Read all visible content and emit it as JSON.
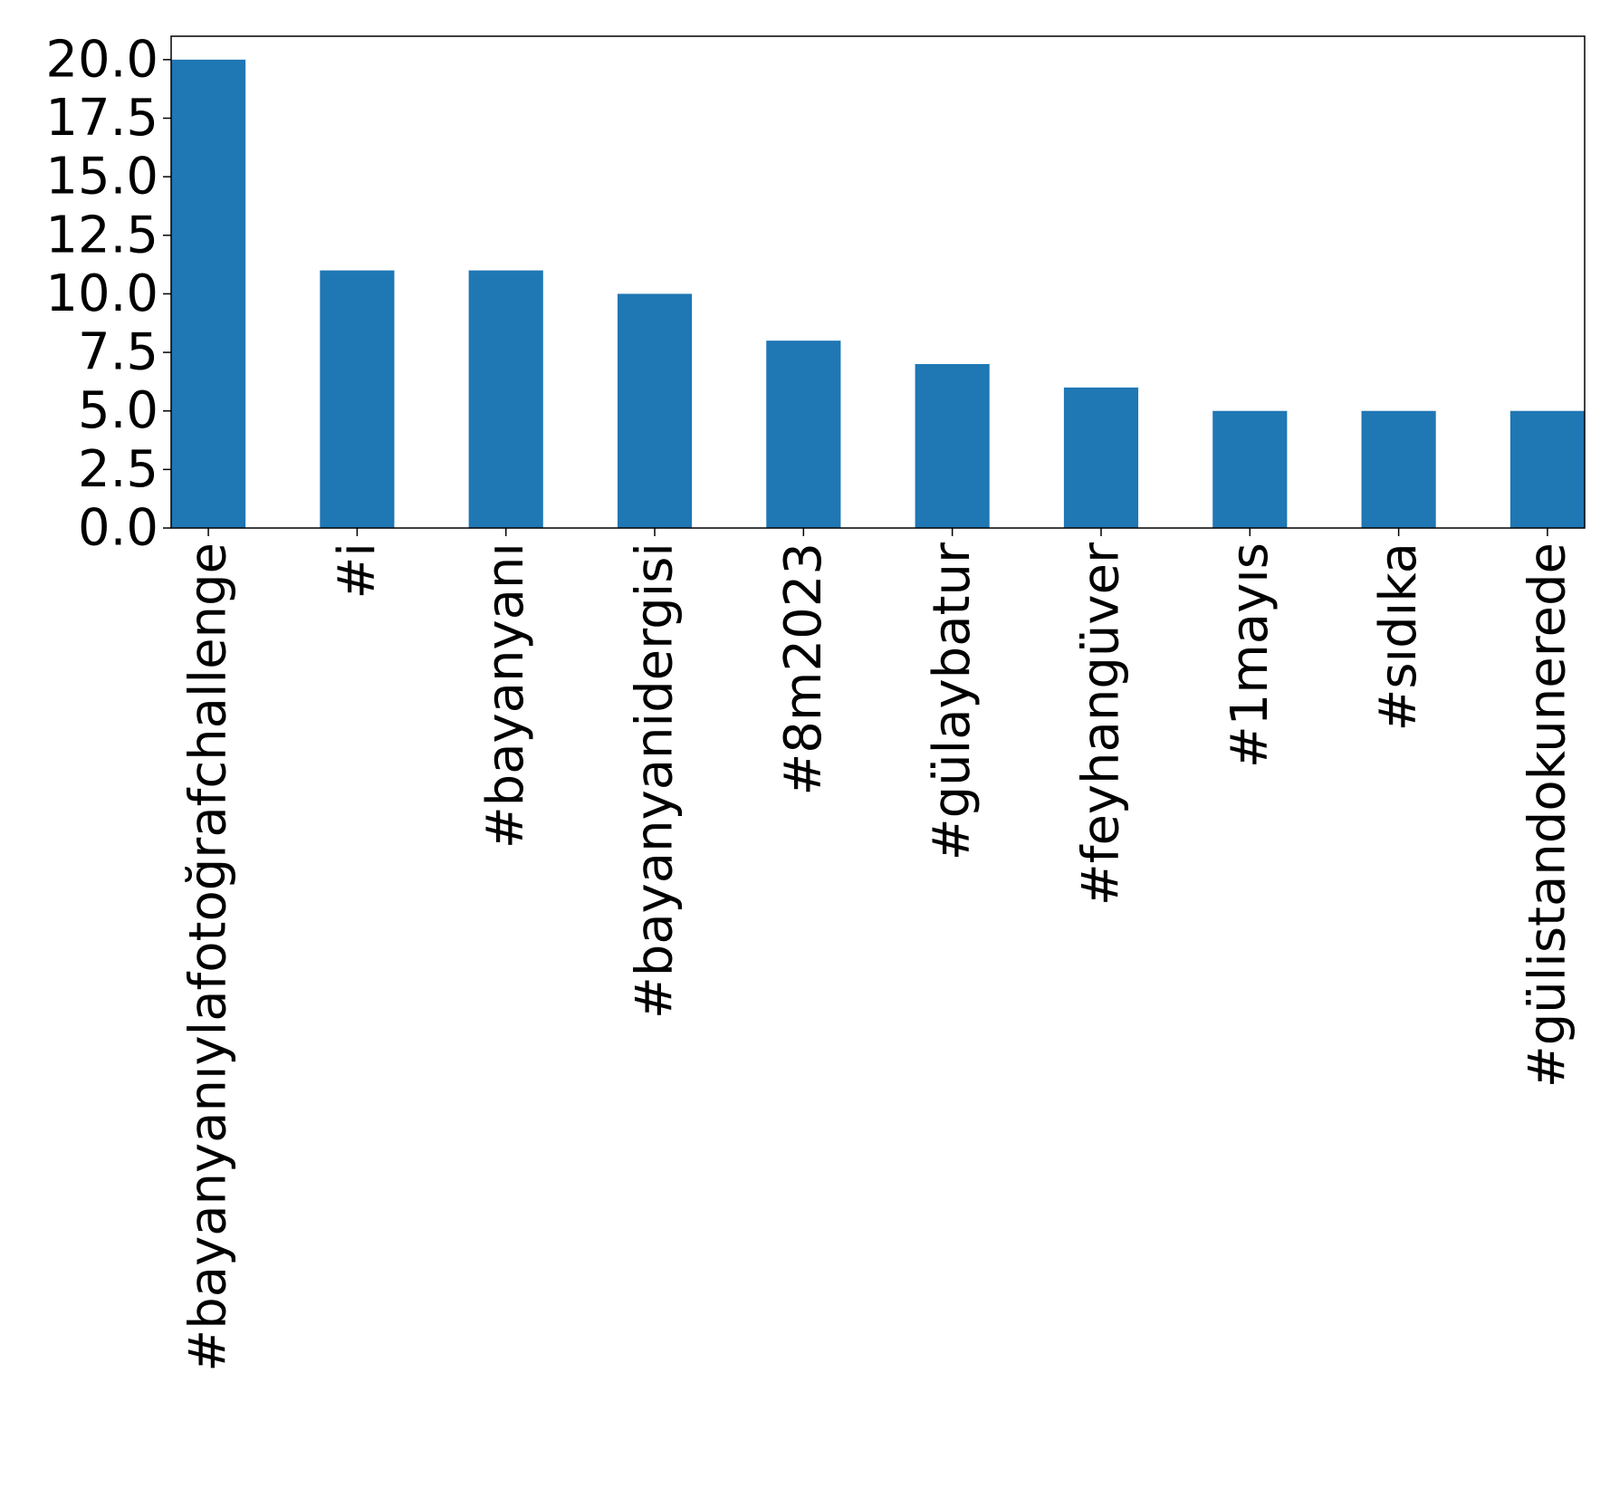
{
  "chart_data": {
    "type": "bar",
    "title": "",
    "xlabel": "",
    "ylabel": "",
    "categories": [
      "#bayanyanıylafotoğrafchallenge",
      "#i",
      "#bayanyanı",
      "#bayanyanidergisi",
      "#8m2023",
      "#gülaybatur",
      "#feyhangüver",
      "#1mayıs",
      "#sıdıka",
      "#gülistandokunerede"
    ],
    "values": [
      20,
      11,
      11,
      10,
      8,
      7,
      6,
      5,
      5,
      5
    ],
    "ylim": [
      0,
      21
    ],
    "yticks": [
      0,
      2.5,
      5,
      7.5,
      10,
      12.5,
      15,
      17.5,
      20
    ],
    "ytick_labels": [
      "0.0",
      "2.5",
      "5.0",
      "7.5",
      "10.0",
      "12.5",
      "15.0",
      "17.5",
      "20.0"
    ],
    "grid": false,
    "legend": "none",
    "bar_color": "#1f77b4"
  }
}
